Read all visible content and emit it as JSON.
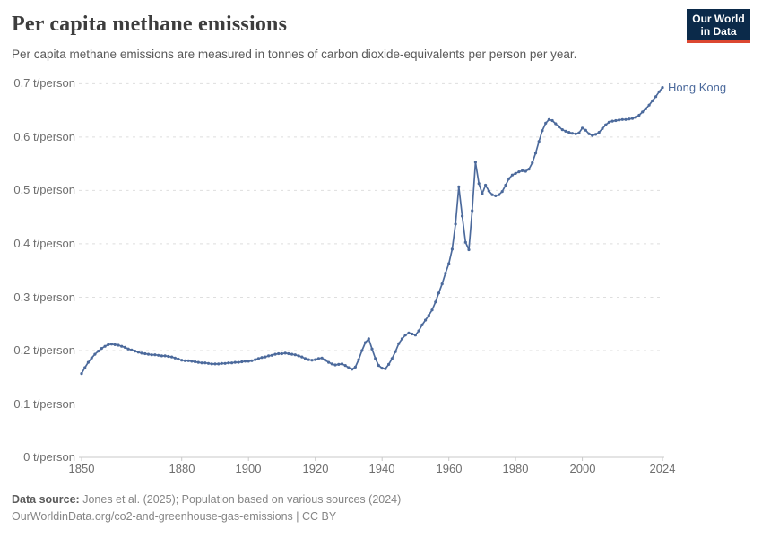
{
  "header": {
    "title": "Per capita methane emissions",
    "subtitle": "Per capita methane emissions are measured in tonnes of carbon dioxide-equivalents per person per year.",
    "logo_line1": "Our World",
    "logo_line2": "in Data"
  },
  "chart_data": {
    "type": "line",
    "title": "Per capita methane emissions",
    "unit": "t/person",
    "entity_label": "Hong Kong",
    "xlim": [
      1850,
      2024
    ],
    "ylim": [
      0,
      0.7
    ],
    "grid": "dashed horizontal gridlines",
    "legend_position": "label at end of line",
    "xticks": [
      1850,
      1880,
      1900,
      1920,
      1940,
      1960,
      1980,
      2000,
      2024
    ],
    "xtick_labels": [
      "1850",
      "1880",
      "1900",
      "1920",
      "1940",
      "1960",
      "1980",
      "2000",
      "2024"
    ],
    "yticks": [
      0,
      0.1,
      0.2,
      0.3,
      0.4,
      0.5,
      0.6,
      0.7
    ],
    "ytick_labels": [
      "0 t/person",
      "0.1 t/person",
      "0.2 t/person",
      "0.3 t/person",
      "0.4 t/person",
      "0.5 t/person",
      "0.6 t/person",
      "0.7 t/person"
    ],
    "x_start_year": 1850,
    "x_step_years": 1,
    "series": [
      {
        "name": "Hong Kong",
        "color": "#4c6a9c",
        "values": [
          0.157,
          0.168,
          0.178,
          0.186,
          0.193,
          0.199,
          0.204,
          0.208,
          0.211,
          0.212,
          0.211,
          0.21,
          0.208,
          0.206,
          0.203,
          0.201,
          0.199,
          0.197,
          0.195,
          0.194,
          0.193,
          0.192,
          0.192,
          0.191,
          0.19,
          0.19,
          0.189,
          0.188,
          0.186,
          0.184,
          0.182,
          0.181,
          0.181,
          0.18,
          0.179,
          0.178,
          0.177,
          0.177,
          0.176,
          0.175,
          0.175,
          0.175,
          0.176,
          0.176,
          0.177,
          0.177,
          0.178,
          0.178,
          0.179,
          0.18,
          0.18,
          0.181,
          0.183,
          0.185,
          0.187,
          0.188,
          0.19,
          0.191,
          0.193,
          0.194,
          0.194,
          0.195,
          0.194,
          0.193,
          0.192,
          0.19,
          0.188,
          0.185,
          0.183,
          0.182,
          0.183,
          0.185,
          0.186,
          0.182,
          0.178,
          0.175,
          0.173,
          0.174,
          0.175,
          0.172,
          0.168,
          0.165,
          0.169,
          0.183,
          0.2,
          0.215,
          0.222,
          0.203,
          0.185,
          0.172,
          0.167,
          0.166,
          0.174,
          0.185,
          0.198,
          0.213,
          0.222,
          0.229,
          0.233,
          0.231,
          0.229,
          0.237,
          0.248,
          0.257,
          0.266,
          0.276,
          0.291,
          0.308,
          0.325,
          0.345,
          0.363,
          0.39,
          0.437,
          0.507,
          0.452,
          0.403,
          0.389,
          0.462,
          0.553,
          0.513,
          0.494,
          0.51,
          0.499,
          0.492,
          0.49,
          0.492,
          0.498,
          0.51,
          0.522,
          0.529,
          0.532,
          0.535,
          0.537,
          0.536,
          0.54,
          0.552,
          0.57,
          0.592,
          0.612,
          0.626,
          0.633,
          0.631,
          0.625,
          0.619,
          0.614,
          0.611,
          0.609,
          0.607,
          0.606,
          0.608,
          0.617,
          0.613,
          0.606,
          0.603,
          0.605,
          0.609,
          0.616,
          0.623,
          0.628,
          0.63,
          0.631,
          0.632,
          0.633,
          0.633,
          0.634,
          0.635,
          0.637,
          0.641,
          0.647,
          0.653,
          0.66,
          0.668,
          0.676,
          0.685,
          0.693
        ]
      }
    ]
  },
  "footer": {
    "source_label": "Data source:",
    "source_rest": " Jones et al. (2025); Population based on various sources (2024)",
    "url": "OurWorldinData.org/co2-and-greenhouse-gas-emissions",
    "divider": " | ",
    "license": "CC BY"
  },
  "colors": {
    "accent_line": "#4c6a9c",
    "logo_background": "#0b2a4a",
    "logo_underline": "#dc4731",
    "gridline": "#dedede",
    "axis": "#c9c9c9",
    "text_primary": "#3d3d3d",
    "text_secondary": "#595959",
    "text_axis": "#6e6e6e"
  }
}
